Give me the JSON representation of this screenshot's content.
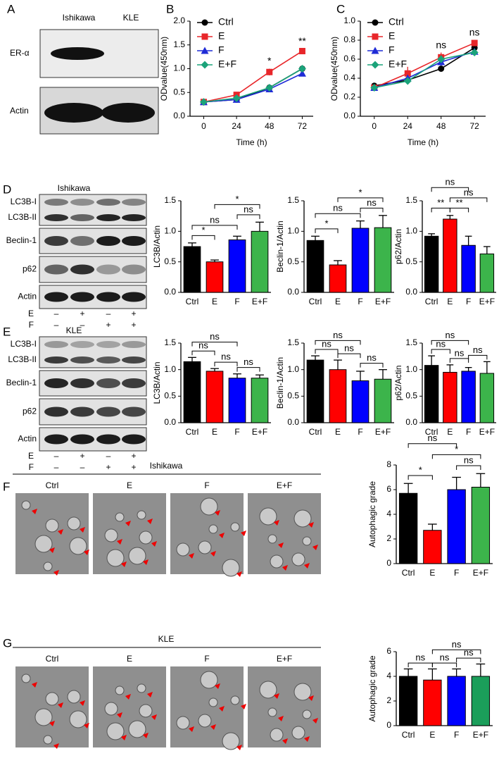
{
  "panel_letters": [
    "A",
    "B",
    "C",
    "D",
    "E",
    "F",
    "G"
  ],
  "blot_a": {
    "columns": [
      "Ishikawa",
      "KLE"
    ],
    "rows": [
      "ER-α",
      "Actin"
    ]
  },
  "blot_d": {
    "title": "Ishikawa",
    "rows": [
      "LC3B-I",
      "LC3B-II",
      "Beclin-1",
      "p62",
      "Actin"
    ],
    "treatments": [
      {
        "name": "E",
        "signs": [
          "–",
          "+",
          "–",
          "+"
        ]
      },
      {
        "name": "F",
        "signs": [
          "–",
          "–",
          "+",
          "+"
        ]
      }
    ]
  },
  "blot_e": {
    "title": "KLE",
    "rows": [
      "LC3B-I",
      "LC3B-II",
      "Beclin-1",
      "p62",
      "Actin"
    ],
    "treatments": [
      {
        "name": "E",
        "signs": [
          "–",
          "+",
          "–",
          "+"
        ]
      },
      {
        "name": "F",
        "signs": [
          "–",
          "–",
          "+",
          "+"
        ]
      }
    ]
  },
  "tem_f": {
    "title": "Ishikawa",
    "columns": [
      "Ctrl",
      "E",
      "F",
      "E+F"
    ]
  },
  "tem_g": {
    "title": "KLE",
    "columns": [
      "Ctrl",
      "E",
      "F",
      "E+F"
    ]
  },
  "chart_data": [
    {
      "type": "line",
      "x": [
        0,
        24,
        48,
        72
      ],
      "xlim": [
        -10,
        80
      ],
      "xticks": [
        0,
        24,
        48,
        72
      ],
      "ylim": [
        0,
        2
      ],
      "yticks": [
        {
          "value": 0,
          "label": "0.0"
        },
        {
          "value": 0.5,
          "label": "0.5"
        },
        {
          "value": 1,
          "label": "1.0"
        },
        {
          "value": 1.5,
          "label": "1.5"
        },
        {
          "value": 2,
          "label": "2.0"
        }
      ],
      "xlabel": "Time (h)",
      "ylabel": "ODvalue(450nm)",
      "legend": "upper left",
      "series": [
        {
          "name": "Ctrl",
          "color": "#000000",
          "marker": "circle",
          "values": [
            0.3,
            0.35,
            0.6,
            1.0
          ],
          "errors": [
            0.04,
            0.03,
            0.04,
            0.06
          ]
        },
        {
          "name": "E",
          "color": "#e8262a",
          "marker": "square",
          "values": [
            0.3,
            0.45,
            0.93,
            1.37
          ],
          "errors": [
            0.04,
            0.05,
            0.07,
            0.05
          ]
        },
        {
          "name": "F",
          "color": "#1f2bd6",
          "marker": "triangle",
          "values": [
            0.3,
            0.35,
            0.57,
            0.9
          ],
          "errors": [
            0.03,
            0.03,
            0.03,
            0.06
          ]
        },
        {
          "name": "E+F",
          "color": "#1aa37a",
          "marker": "diamond",
          "values": [
            0.3,
            0.38,
            0.6,
            1.0
          ],
          "errors": [
            0.03,
            0.03,
            0.03,
            0.06
          ]
        }
      ],
      "annotations": [
        {
          "x": 48,
          "text": "*"
        },
        {
          "x": 72,
          "text": "**"
        }
      ]
    },
    {
      "type": "line",
      "x": [
        0,
        24,
        48,
        72
      ],
      "xlim": [
        -10,
        80
      ],
      "xticks": [
        0,
        24,
        48,
        72
      ],
      "ylim": [
        0,
        1
      ],
      "yticks": [
        {
          "value": 0,
          "label": "0.0"
        },
        {
          "value": 0.2,
          "label": "0.2"
        },
        {
          "value": 0.4,
          "label": "0.4"
        },
        {
          "value": 0.6,
          "label": "0.6"
        },
        {
          "value": 0.8,
          "label": "0.8"
        },
        {
          "value": 1,
          "label": "1.0"
        }
      ],
      "xlabel": "Time (h)",
      "ylabel": "ODvalue(450nm)",
      "legend": "upper left",
      "series": [
        {
          "name": "Ctrl",
          "color": "#000000",
          "marker": "circle",
          "values": [
            0.32,
            0.38,
            0.5,
            0.72
          ],
          "errors": [
            0.03,
            0.03,
            0.02,
            0.03
          ]
        },
        {
          "name": "E",
          "color": "#e8262a",
          "marker": "square",
          "values": [
            0.3,
            0.45,
            0.62,
            0.77
          ],
          "errors": [
            0.03,
            0.07,
            0.05,
            0.03
          ]
        },
        {
          "name": "F",
          "color": "#1f2bd6",
          "marker": "triangle",
          "values": [
            0.3,
            0.4,
            0.57,
            0.68
          ],
          "errors": [
            0.02,
            0.03,
            0.04,
            0.03
          ]
        },
        {
          "name": "E+F",
          "color": "#1aa37a",
          "marker": "diamond",
          "values": [
            0.3,
            0.37,
            0.6,
            0.67
          ],
          "errors": [
            0.02,
            0.02,
            0.04,
            0.03
          ]
        }
      ],
      "annotations": [
        {
          "x": 48,
          "text": "ns"
        },
        {
          "x": 72,
          "text": "ns"
        }
      ]
    },
    {
      "type": "bar",
      "ylabel": "LC3B/Actin",
      "categories": [
        "Ctrl",
        "E",
        "F",
        "E+F"
      ],
      "colors": [
        "#000000",
        "#ff0000",
        "#0000ff",
        "#3cb44b"
      ],
      "values": [
        0.75,
        0.5,
        0.86,
        1.0
      ],
      "errors": [
        0.06,
        0.03,
        0.06,
        0.15
      ],
      "ylim": [
        0,
        1.5
      ],
      "yticks": [
        {
          "value": 0,
          "label": "0.0"
        },
        {
          "value": 0.5,
          "label": "0.5"
        },
        {
          "value": 1,
          "label": "1.0"
        },
        {
          "value": 1.5,
          "label": "1.5"
        }
      ],
      "comparisons": [
        {
          "from": 0,
          "to": 1,
          "label": "*"
        },
        {
          "from": 0,
          "to": 2,
          "label": "ns"
        },
        {
          "from": 2,
          "to": 3,
          "label": "ns"
        },
        {
          "from": 1,
          "to": 3,
          "label": "*"
        }
      ]
    },
    {
      "type": "bar",
      "ylabel": "Beclin-1/Actin",
      "categories": [
        "Ctrl",
        "E",
        "F",
        "E+F"
      ],
      "colors": [
        "#000000",
        "#ff0000",
        "#0000ff",
        "#3cb44b"
      ],
      "values": [
        0.85,
        0.45,
        1.05,
        1.06
      ],
      "errors": [
        0.07,
        0.07,
        0.12,
        0.2
      ],
      "ylim": [
        0,
        1.5
      ],
      "yticks": [
        {
          "value": 0,
          "label": "0.0"
        },
        {
          "value": 0.5,
          "label": "0.5"
        },
        {
          "value": 1,
          "label": "1.0"
        },
        {
          "value": 1.5,
          "label": "1.5"
        }
      ],
      "comparisons": [
        {
          "from": 0,
          "to": 1,
          "label": "*"
        },
        {
          "from": 0,
          "to": 2,
          "label": "ns"
        },
        {
          "from": 2,
          "to": 3,
          "label": "ns"
        },
        {
          "from": 1,
          "to": 3,
          "label": "*"
        }
      ]
    },
    {
      "type": "bar",
      "ylabel": "p62/Actin",
      "categories": [
        "Ctrl",
        "E",
        "F",
        "E+F"
      ],
      "colors": [
        "#000000",
        "#ff0000",
        "#0000ff",
        "#3cb44b"
      ],
      "values": [
        0.92,
        1.2,
        0.77,
        0.63
      ],
      "errors": [
        0.04,
        0.06,
        0.15,
        0.12
      ],
      "ylim": [
        0,
        1.5
      ],
      "yticks": [
        {
          "value": 0,
          "label": "0.0"
        },
        {
          "value": 0.5,
          "label": "0.5"
        },
        {
          "value": 1,
          "label": "1.0"
        },
        {
          "value": 1.5,
          "label": "1.5"
        }
      ],
      "comparisons": [
        {
          "from": 0,
          "to": 1,
          "label": "**"
        },
        {
          "from": 1,
          "to": 2,
          "label": "**"
        },
        {
          "from": 1,
          "to": 3,
          "label": "ns"
        },
        {
          "from": 0,
          "to": 2,
          "label": "ns"
        }
      ]
    },
    {
      "type": "bar",
      "ylabel": "LC3B/Actin",
      "categories": [
        "Ctrl",
        "E",
        "F",
        "E+F"
      ],
      "colors": [
        "#000000",
        "#ff0000",
        "#0000ff",
        "#3cb44b"
      ],
      "values": [
        1.15,
        0.97,
        0.84,
        0.84
      ],
      "errors": [
        0.08,
        0.05,
        0.08,
        0.06
      ],
      "ylim": [
        0,
        1.5
      ],
      "yticks": [
        {
          "value": 0,
          "label": "0.0"
        },
        {
          "value": 0.5,
          "label": "0.5"
        },
        {
          "value": 1,
          "label": "1.0"
        },
        {
          "value": 1.5,
          "label": "1.5"
        }
      ],
      "comparisons": [
        {
          "from": 0,
          "to": 1,
          "label": "ns"
        },
        {
          "from": 1,
          "to": 2,
          "label": "ns"
        },
        {
          "from": 2,
          "to": 3,
          "label": "ns"
        },
        {
          "from": 0,
          "to": 2,
          "label": "ns"
        }
      ]
    },
    {
      "type": "bar",
      "ylabel": "Beclin-1/Actin",
      "categories": [
        "Ctrl",
        "E",
        "F",
        "E+F"
      ],
      "colors": [
        "#000000",
        "#ff0000",
        "#0000ff",
        "#3cb44b"
      ],
      "values": [
        1.18,
        1.0,
        0.79,
        0.82
      ],
      "errors": [
        0.08,
        0.18,
        0.18,
        0.18
      ],
      "ylim": [
        0,
        1.5
      ],
      "yticks": [
        {
          "value": 0,
          "label": "0.0"
        },
        {
          "value": 0.5,
          "label": "0.5"
        },
        {
          "value": 1,
          "label": "1.0"
        },
        {
          "value": 1.5,
          "label": "1.5"
        }
      ],
      "comparisons": [
        {
          "from": 0,
          "to": 1,
          "label": "ns"
        },
        {
          "from": 1,
          "to": 2,
          "label": "ns"
        },
        {
          "from": 2,
          "to": 3,
          "label": "ns"
        },
        {
          "from": 0,
          "to": 2,
          "label": "ns"
        }
      ]
    },
    {
      "type": "bar",
      "ylabel": "p62/Actin",
      "categories": [
        "Ctrl",
        "E",
        "F",
        "E+F"
      ],
      "colors": [
        "#000000",
        "#ff0000",
        "#0000ff",
        "#3cb44b"
      ],
      "values": [
        1.08,
        0.95,
        0.97,
        0.93
      ],
      "errors": [
        0.18,
        0.14,
        0.07,
        0.22
      ],
      "ylim": [
        0,
        1.5
      ],
      "yticks": [
        {
          "value": 0,
          "label": "0.0"
        },
        {
          "value": 0.5,
          "label": "0.5"
        },
        {
          "value": 1,
          "label": "1.0"
        },
        {
          "value": 1.5,
          "label": "1.5"
        }
      ],
      "comparisons": [
        {
          "from": 0,
          "to": 1,
          "label": "ns"
        },
        {
          "from": 1,
          "to": 2,
          "label": "ns"
        },
        {
          "from": 2,
          "to": 3,
          "label": "ns"
        },
        {
          "from": 0,
          "to": 2,
          "label": "ns"
        }
      ]
    },
    {
      "type": "bar",
      "ylabel": "Autophagic grade",
      "categories": [
        "Ctrl",
        "E",
        "F",
        "E+F"
      ],
      "colors": [
        "#000000",
        "#ff0000",
        "#0000ff",
        "#3cb44b"
      ],
      "values": [
        5.7,
        2.7,
        6.0,
        6.2
      ],
      "errors": [
        0.8,
        0.5,
        1.0,
        1.1
      ],
      "ylim": [
        0,
        8
      ],
      "yticks": [
        0,
        2,
        4,
        6,
        8
      ],
      "comparisons": [
        {
          "from": 0,
          "to": 1,
          "label": "*"
        },
        {
          "from": 2,
          "to": 3,
          "label": "ns"
        },
        {
          "from": 1,
          "to": 3,
          "label": "*"
        },
        {
          "from": 0,
          "to": 2,
          "label": "ns"
        }
      ]
    },
    {
      "type": "bar",
      "ylabel": "Autophagic grade",
      "categories": [
        "Ctrl",
        "E",
        "F",
        "E+F"
      ],
      "colors": [
        "#000000",
        "#ff0000",
        "#0000ff",
        "#1b9e5a"
      ],
      "values": [
        4.0,
        3.7,
        4.0,
        4.0
      ],
      "errors": [
        0.6,
        0.9,
        0.6,
        1.0
      ],
      "ylim": [
        0,
        6
      ],
      "yticks": [
        0,
        2,
        4,
        6
      ],
      "comparisons": [
        {
          "from": 0,
          "to": 1,
          "label": "ns"
        },
        {
          "from": 1,
          "to": 2,
          "label": "ns"
        },
        {
          "from": 2,
          "to": 3,
          "label": "ns"
        },
        {
          "from": 1,
          "to": 3,
          "label": "ns"
        }
      ]
    }
  ]
}
